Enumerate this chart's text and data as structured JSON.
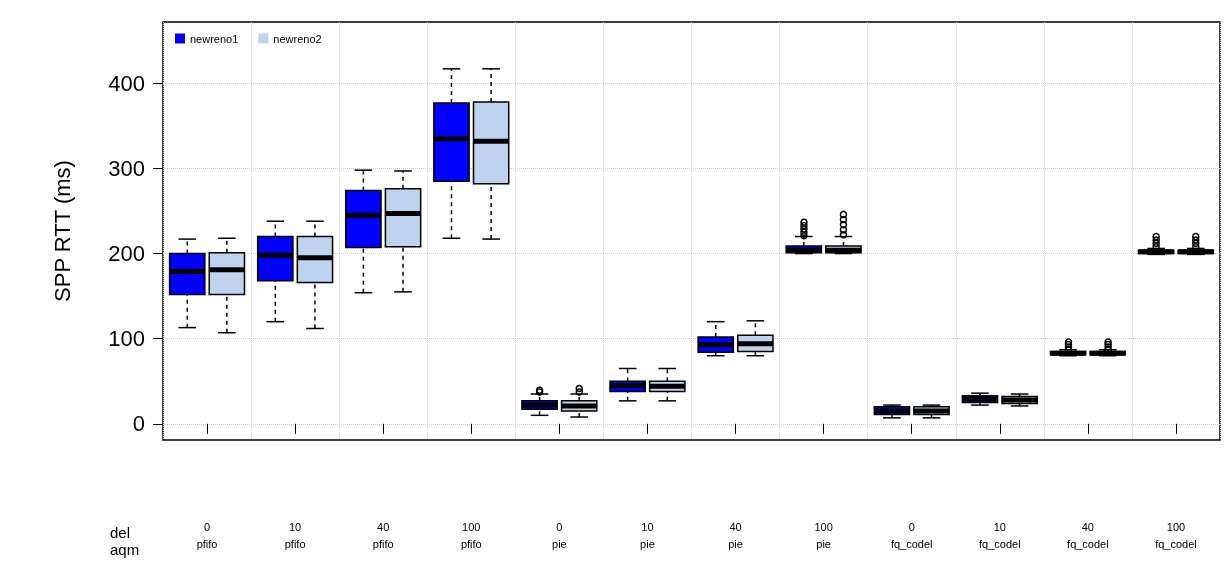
{
  "chart_data": {
    "type": "box",
    "ylabel": "SPP RTT (ms)",
    "xlabel": "del\naqm",
    "categories": [
      "0\npfifo",
      "10\npfifo",
      "40\npfifo",
      "100\npfifo",
      "0\npie",
      "10\npie",
      "40\npie",
      "100\npie",
      "0\nfq_codel",
      "10\nfq_codel",
      "40\nfq_codel",
      "100\nfq_codel"
    ],
    "ylim": [
      -19,
      472
    ],
    "yticks": [
      0,
      100,
      200,
      300,
      400
    ],
    "grid": true,
    "legend": "top left",
    "marker": "circle",
    "series": [
      {
        "name": "newreno1",
        "color": "#0000ff",
        "boxes": [
          {
            "low": 113,
            "q1": 152,
            "median": 179,
            "q3": 200,
            "high": 217
          },
          {
            "low": 120,
            "q1": 168,
            "median": 198,
            "q3": 220,
            "high": 238
          },
          {
            "low": 154,
            "q1": 207,
            "median": 245,
            "q3": 274,
            "high": 298
          },
          {
            "low": 218,
            "q1": 285,
            "median": 335,
            "q3": 377,
            "high": 417
          },
          {
            "low": 10,
            "q1": 17,
            "median": 22,
            "q3": 27,
            "high": 35,
            "outliers": [
              38,
              40
            ]
          },
          {
            "low": 27,
            "q1": 38,
            "median": 45,
            "q3": 50,
            "high": 65
          },
          {
            "low": 80,
            "q1": 84,
            "median": 93,
            "q3": 102,
            "high": 120
          },
          {
            "low": 200,
            "q1": 201,
            "median": 204,
            "q3": 209,
            "high": 220,
            "outliers": [
              222,
              226,
              230,
              234,
              238
            ]
          },
          {
            "low": 7,
            "q1": 11,
            "median": 15,
            "q3": 20,
            "high": 22
          },
          {
            "low": 22,
            "q1": 25,
            "median": 29,
            "q3": 33,
            "high": 36
          },
          {
            "low": 80,
            "q1": 81,
            "median": 83,
            "q3": 85,
            "high": 87,
            "outliers": [
              89,
              92,
              95,
              98
            ]
          },
          {
            "low": 199,
            "q1": 200,
            "median": 202,
            "q3": 204,
            "high": 206,
            "outliers": [
              208,
              212,
              216,
              220
            ]
          }
        ]
      },
      {
        "name": "newreno2",
        "color": "#bfd3ee",
        "boxes": [
          {
            "low": 107,
            "q1": 152,
            "median": 181,
            "q3": 201,
            "high": 218
          },
          {
            "low": 112,
            "q1": 166,
            "median": 195,
            "q3": 220,
            "high": 238
          },
          {
            "low": 155,
            "q1": 208,
            "median": 247,
            "q3": 276,
            "high": 297
          },
          {
            "low": 217,
            "q1": 282,
            "median": 332,
            "q3": 378,
            "high": 417
          },
          {
            "low": 8,
            "q1": 15,
            "median": 21,
            "q3": 27,
            "high": 35,
            "outliers": [
              38,
              42
            ]
          },
          {
            "low": 27,
            "q1": 38,
            "median": 44,
            "q3": 50,
            "high": 65
          },
          {
            "low": 80,
            "q1": 85,
            "median": 94,
            "q3": 104,
            "high": 121
          },
          {
            "low": 200,
            "q1": 201,
            "median": 204,
            "q3": 209,
            "high": 220,
            "outliers": [
              222,
              228,
              234,
              240,
              246
            ]
          },
          {
            "low": 7,
            "q1": 11,
            "median": 15,
            "q3": 20,
            "high": 22
          },
          {
            "low": 21,
            "q1": 24,
            "median": 28,
            "q3": 32,
            "high": 35
          },
          {
            "low": 80,
            "q1": 81,
            "median": 83,
            "q3": 85,
            "high": 87,
            "outliers": [
              89,
              92,
              95,
              98
            ]
          },
          {
            "low": 199,
            "q1": 200,
            "median": 202,
            "q3": 204,
            "high": 206,
            "outliers": [
              208,
              212,
              216,
              220
            ]
          }
        ]
      }
    ]
  }
}
